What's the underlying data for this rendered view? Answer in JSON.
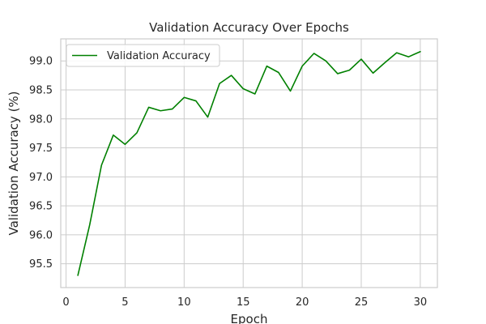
{
  "chart_data": {
    "type": "line",
    "title": "Validation Accuracy Over Epochs",
    "xlabel": "Epoch",
    "ylabel": "Validation Accuracy (%)",
    "xlim": [
      -0.45,
      31.45
    ],
    "ylim": [
      95.09,
      99.38
    ],
    "xticks": [
      0,
      5,
      10,
      15,
      20,
      25,
      30
    ],
    "xtick_labels": [
      "0",
      "5",
      "10",
      "15",
      "20",
      "25",
      "30"
    ],
    "yticks": [
      95.5,
      96.0,
      96.5,
      97.0,
      97.5,
      98.0,
      98.5,
      99.0
    ],
    "ytick_labels": [
      "95.5",
      "96.0",
      "96.5",
      "97.0",
      "97.5",
      "98.0",
      "98.5",
      "99.0"
    ],
    "grid": true,
    "legend_position": "upper-left",
    "series": [
      {
        "name": "Validation Accuracy",
        "color": "#008000",
        "x": [
          1,
          2,
          3,
          4,
          5,
          6,
          7,
          8,
          9,
          10,
          11,
          12,
          13,
          14,
          15,
          16,
          17,
          18,
          19,
          20,
          21,
          22,
          23,
          24,
          25,
          26,
          27,
          28,
          29,
          30
        ],
        "y": [
          95.3,
          96.17,
          97.2,
          97.72,
          97.56,
          97.76,
          98.2,
          98.14,
          98.17,
          98.37,
          98.31,
          98.03,
          98.61,
          98.75,
          98.52,
          98.43,
          98.91,
          98.8,
          98.48,
          98.91,
          99.13,
          99.0,
          98.78,
          98.84,
          99.03,
          98.79,
          98.97,
          99.14,
          99.07,
          99.16
        ]
      }
    ]
  }
}
